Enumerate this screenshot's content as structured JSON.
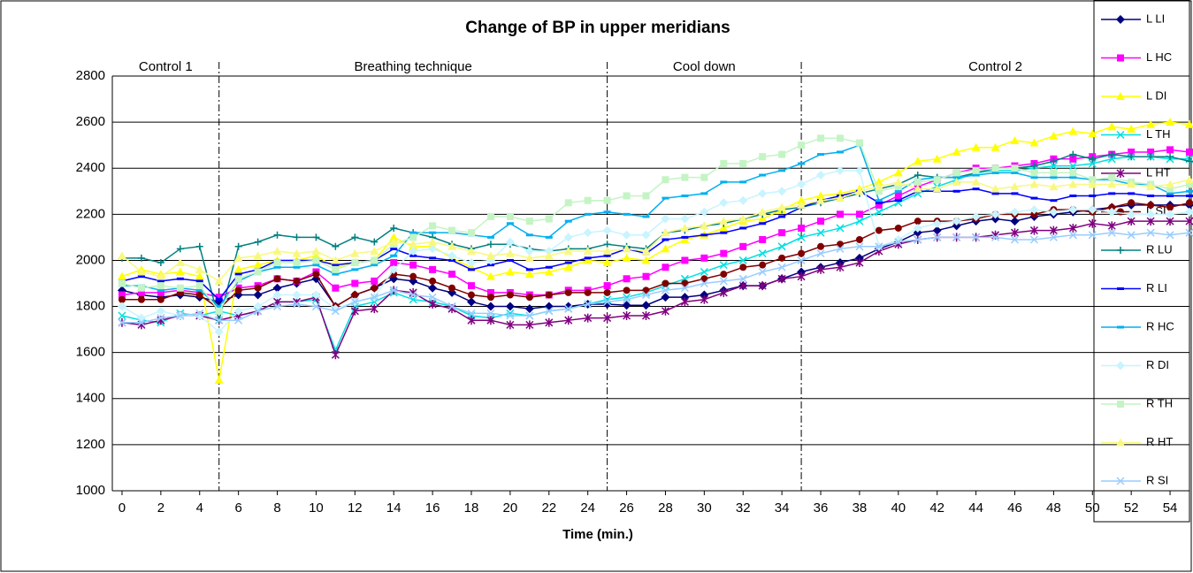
{
  "chart_data": {
    "type": "line",
    "title": "Change of BP in upper meridians",
    "x_label": "Time (min.)",
    "x": [
      0,
      1,
      2,
      3,
      4,
      5,
      6,
      7,
      8,
      9,
      10,
      11,
      12,
      13,
      14,
      15,
      16,
      17,
      18,
      19,
      20,
      21,
      22,
      23,
      24,
      25,
      26,
      27,
      28,
      29,
      30,
      31,
      32,
      33,
      34,
      35,
      36,
      37,
      38,
      39,
      40,
      41,
      42,
      43,
      44,
      45,
      46,
      47,
      48,
      49,
      50,
      51,
      52,
      53,
      54,
      55
    ],
    "xlim": [
      -0.5,
      55
    ],
    "xticks": [
      0,
      2,
      4,
      6,
      8,
      10,
      12,
      14,
      16,
      18,
      20,
      22,
      24,
      26,
      28,
      30,
      32,
      34,
      36,
      38,
      40,
      42,
      44,
      46,
      48,
      50,
      52,
      54
    ],
    "ylim": [
      1000,
      2800
    ],
    "yticks": [
      1000,
      1200,
      1400,
      1600,
      1800,
      2000,
      2200,
      2400,
      2600,
      2800
    ],
    "grid": true,
    "dividers": [
      5,
      25,
      35
    ],
    "region_labels": [
      "Control 1",
      "Breathing technique",
      "Cool down",
      "Control 2"
    ],
    "legend": "right",
    "series": [
      {
        "name": "L LI",
        "color": "#000080",
        "marker": "diamond",
        "values": [
          1870,
          1850,
          1840,
          1850,
          1840,
          1820,
          1850,
          1850,
          1880,
          1900,
          1920,
          1800,
          1850,
          1880,
          1920,
          1910,
          1880,
          1860,
          1820,
          1800,
          1800,
          1790,
          1800,
          1800,
          1810,
          1810,
          1805,
          1805,
          1840,
          1840,
          1850,
          1870,
          1890,
          1890,
          1920,
          1950,
          1970,
          1990,
          2010,
          2050,
          2080,
          2120,
          2130,
          2150,
          2170,
          2180,
          2170,
          2190,
          2200,
          2210,
          2220,
          2230,
          2240,
          2240,
          2240,
          2240
        ]
      },
      {
        "name": "L HC",
        "color": "#ff00ff",
        "marker": "square",
        "values": [
          1850,
          1860,
          1860,
          1870,
          1860,
          1840,
          1880,
          1890,
          1920,
          1910,
          1950,
          1880,
          1900,
          1910,
          1990,
          1980,
          1960,
          1940,
          1890,
          1860,
          1860,
          1850,
          1850,
          1870,
          1870,
          1890,
          1920,
          1930,
          1970,
          2000,
          2010,
          2030,
          2060,
          2090,
          2120,
          2140,
          2170,
          2200,
          2200,
          2240,
          2280,
          2320,
          2350,
          2380,
          2400,
          2400,
          2410,
          2420,
          2440,
          2440,
          2450,
          2460,
          2470,
          2470,
          2480,
          2470
        ]
      },
      {
        "name": "L DI",
        "color": "#ffff00",
        "marker": "triangle",
        "values": [
          1930,
          1960,
          1940,
          1950,
          1930,
          1480,
          1960,
          1980,
          2000,
          2000,
          2020,
          1970,
          1990,
          2000,
          2100,
          2060,
          2060,
          2010,
          1970,
          1930,
          1950,
          1940,
          1950,
          1970,
          2000,
          1990,
          2010,
          2000,
          2050,
          2090,
          2110,
          2140,
          2170,
          2180,
          2220,
          2260,
          2280,
          2290,
          2310,
          2340,
          2380,
          2430,
          2440,
          2470,
          2490,
          2490,
          2520,
          2510,
          2540,
          2560,
          2550,
          2580,
          2570,
          2590,
          2600,
          2590
        ]
      },
      {
        "name": "L TH",
        "color": "#00e0e0",
        "marker": "x",
        "values": [
          1760,
          1740,
          1730,
          1770,
          1760,
          1780,
          1760,
          1780,
          1820,
          1820,
          1830,
          1610,
          1800,
          1820,
          1860,
          1830,
          1820,
          1800,
          1760,
          1750,
          1770,
          1760,
          1780,
          1790,
          1810,
          1830,
          1840,
          1860,
          1890,
          1920,
          1950,
          1980,
          2000,
          2030,
          2060,
          2100,
          2120,
          2140,
          2170,
          2210,
          2250,
          2290,
          2320,
          2350,
          2380,
          2390,
          2390,
          2400,
          2410,
          2410,
          2420,
          2440,
          2450,
          2450,
          2440,
          2440
        ]
      },
      {
        "name": "L HT",
        "color": "#800080",
        "marker": "star",
        "values": [
          1730,
          1720,
          1740,
          1760,
          1760,
          1740,
          1760,
          1780,
          1820,
          1820,
          1840,
          1590,
          1780,
          1790,
          1870,
          1860,
          1810,
          1790,
          1740,
          1740,
          1720,
          1720,
          1730,
          1740,
          1750,
          1750,
          1760,
          1760,
          1780,
          1820,
          1830,
          1860,
          1890,
          1890,
          1920,
          1930,
          1960,
          1970,
          1990,
          2040,
          2070,
          2090,
          2100,
          2100,
          2100,
          2110,
          2120,
          2130,
          2130,
          2140,
          2160,
          2150,
          2170,
          2170,
          2170,
          2170
        ]
      },
      {
        "name": "L SI",
        "color": "#800000",
        "marker": "circle",
        "values": [
          1830,
          1830,
          1830,
          1860,
          1850,
          1790,
          1870,
          1880,
          1920,
          1910,
          1940,
          1800,
          1850,
          1880,
          1940,
          1930,
          1910,
          1880,
          1850,
          1840,
          1850,
          1840,
          1850,
          1860,
          1860,
          1860,
          1870,
          1870,
          1900,
          1900,
          1920,
          1940,
          1970,
          1980,
          2010,
          2030,
          2060,
          2070,
          2090,
          2130,
          2140,
          2170,
          2170,
          2170,
          2180,
          2200,
          2200,
          2200,
          2220,
          2220,
          2210,
          2230,
          2250,
          2240,
          2230,
          2250
        ]
      },
      {
        "name": "R LU",
        "color": "#008080",
        "marker": "plus",
        "values": [
          2010,
          2010,
          1990,
          2050,
          2060,
          1740,
          2060,
          2080,
          2110,
          2100,
          2100,
          2060,
          2100,
          2080,
          2140,
          2120,
          2100,
          2070,
          2050,
          2070,
          2070,
          2050,
          2040,
          2050,
          2050,
          2070,
          2060,
          2050,
          2120,
          2130,
          2150,
          2160,
          2180,
          2200,
          2220,
          2230,
          2250,
          2270,
          2290,
          2310,
          2330,
          2370,
          2360,
          2360,
          2380,
          2400,
          2400,
          2410,
          2430,
          2460,
          2440,
          2460,
          2450,
          2450,
          2450,
          2430
        ]
      },
      {
        "name": "R LI",
        "color": "#0000ff",
        "marker": "dash",
        "values": [
          1910,
          1930,
          1910,
          1920,
          1910,
          1830,
          1940,
          1960,
          2000,
          2000,
          2000,
          1980,
          1990,
          2000,
          2050,
          2020,
          2010,
          2000,
          1960,
          1980,
          2000,
          1960,
          1970,
          1990,
          2010,
          2020,
          2050,
          2030,
          2090,
          2100,
          2110,
          2120,
          2140,
          2160,
          2190,
          2230,
          2260,
          2280,
          2300,
          2250,
          2260,
          2300,
          2300,
          2300,
          2310,
          2290,
          2290,
          2270,
          2260,
          2280,
          2280,
          2290,
          2290,
          2280,
          2280,
          2280
        ]
      },
      {
        "name": "R HC",
        "color": "#00b0f0",
        "marker": "dash",
        "values": [
          1890,
          1890,
          1870,
          1880,
          1870,
          1800,
          1910,
          1950,
          1970,
          1970,
          1980,
          1940,
          1960,
          1980,
          2020,
          2120,
          2120,
          2120,
          2110,
          2100,
          2160,
          2110,
          2100,
          2170,
          2200,
          2210,
          2200,
          2190,
          2270,
          2280,
          2290,
          2340,
          2340,
          2370,
          2390,
          2420,
          2460,
          2470,
          2500,
          2260,
          2300,
          2350,
          2360,
          2360,
          2370,
          2380,
          2380,
          2360,
          2360,
          2360,
          2350,
          2350,
          2330,
          2330,
          2290,
          2300
        ]
      },
      {
        "name": "R DI",
        "color": "#c8f4ff",
        "marker": "diamond",
        "values": [
          1800,
          1750,
          1780,
          1760,
          1760,
          1690,
          1780,
          1800,
          1850,
          1850,
          1850,
          1790,
          1820,
          1840,
          1960,
          2040,
          2050,
          2020,
          1990,
          2000,
          2080,
          2040,
          2040,
          2100,
          2120,
          2130,
          2110,
          2110,
          2180,
          2180,
          2210,
          2250,
          2260,
          2290,
          2300,
          2330,
          2370,
          2390,
          2390,
          2060,
          2090,
          2140,
          2160,
          2170,
          2190,
          2200,
          2210,
          2220,
          2210,
          2220,
          2220,
          2210,
          2200,
          2200,
          2200,
          2210
        ]
      },
      {
        "name": "R TH",
        "color": "#c4f4c4",
        "marker": "square",
        "values": [
          1900,
          1880,
          1890,
          1880,
          1890,
          1780,
          1920,
          1950,
          1990,
          1990,
          2000,
          1960,
          1990,
          2000,
          2070,
          2100,
          2150,
          2130,
          2120,
          2190,
          2190,
          2170,
          2180,
          2250,
          2260,
          2260,
          2280,
          2280,
          2350,
          2360,
          2360,
          2420,
          2420,
          2450,
          2460,
          2500,
          2530,
          2530,
          2510,
          2300,
          2320,
          2340,
          2350,
          2380,
          2390,
          2400,
          2400,
          2380,
          2380,
          2380,
          2350,
          2360,
          2340,
          2330,
          2310,
          2330
        ]
      },
      {
        "name": "R HT",
        "color": "#f8f880",
        "marker": "triangle",
        "values": [
          2020,
          1950,
          1930,
          1990,
          1960,
          1910,
          2010,
          2020,
          2040,
          2030,
          2040,
          2000,
          2030,
          2040,
          2080,
          2070,
          2080,
          2060,
          2040,
          2020,
          2030,
          2010,
          2020,
          2040,
          2040,
          2040,
          2050,
          2040,
          2120,
          2140,
          2150,
          2170,
          2180,
          2210,
          2230,
          2240,
          2260,
          2270,
          2300,
          2320,
          2340,
          2310,
          2310,
          2340,
          2340,
          2310,
          2320,
          2330,
          2320,
          2330,
          2330,
          2330,
          2330,
          2320,
          2330,
          2350
        ]
      },
      {
        "name": "R SI",
        "color": "#99ccff",
        "marker": "x",
        "values": [
          1730,
          1730,
          1750,
          1760,
          1770,
          1740,
          1740,
          1780,
          1800,
          1810,
          1800,
          1780,
          1820,
          1840,
          1870,
          1850,
          1840,
          1800,
          1770,
          1770,
          1760,
          1760,
          1780,
          1790,
          1810,
          1820,
          1830,
          1850,
          1870,
          1880,
          1900,
          1910,
          1920,
          1950,
          1970,
          2000,
          2030,
          2050,
          2060,
          2060,
          2080,
          2090,
          2100,
          2100,
          2100,
          2100,
          2090,
          2090,
          2100,
          2110,
          2110,
          2120,
          2110,
          2120,
          2110,
          2120
        ]
      }
    ]
  }
}
